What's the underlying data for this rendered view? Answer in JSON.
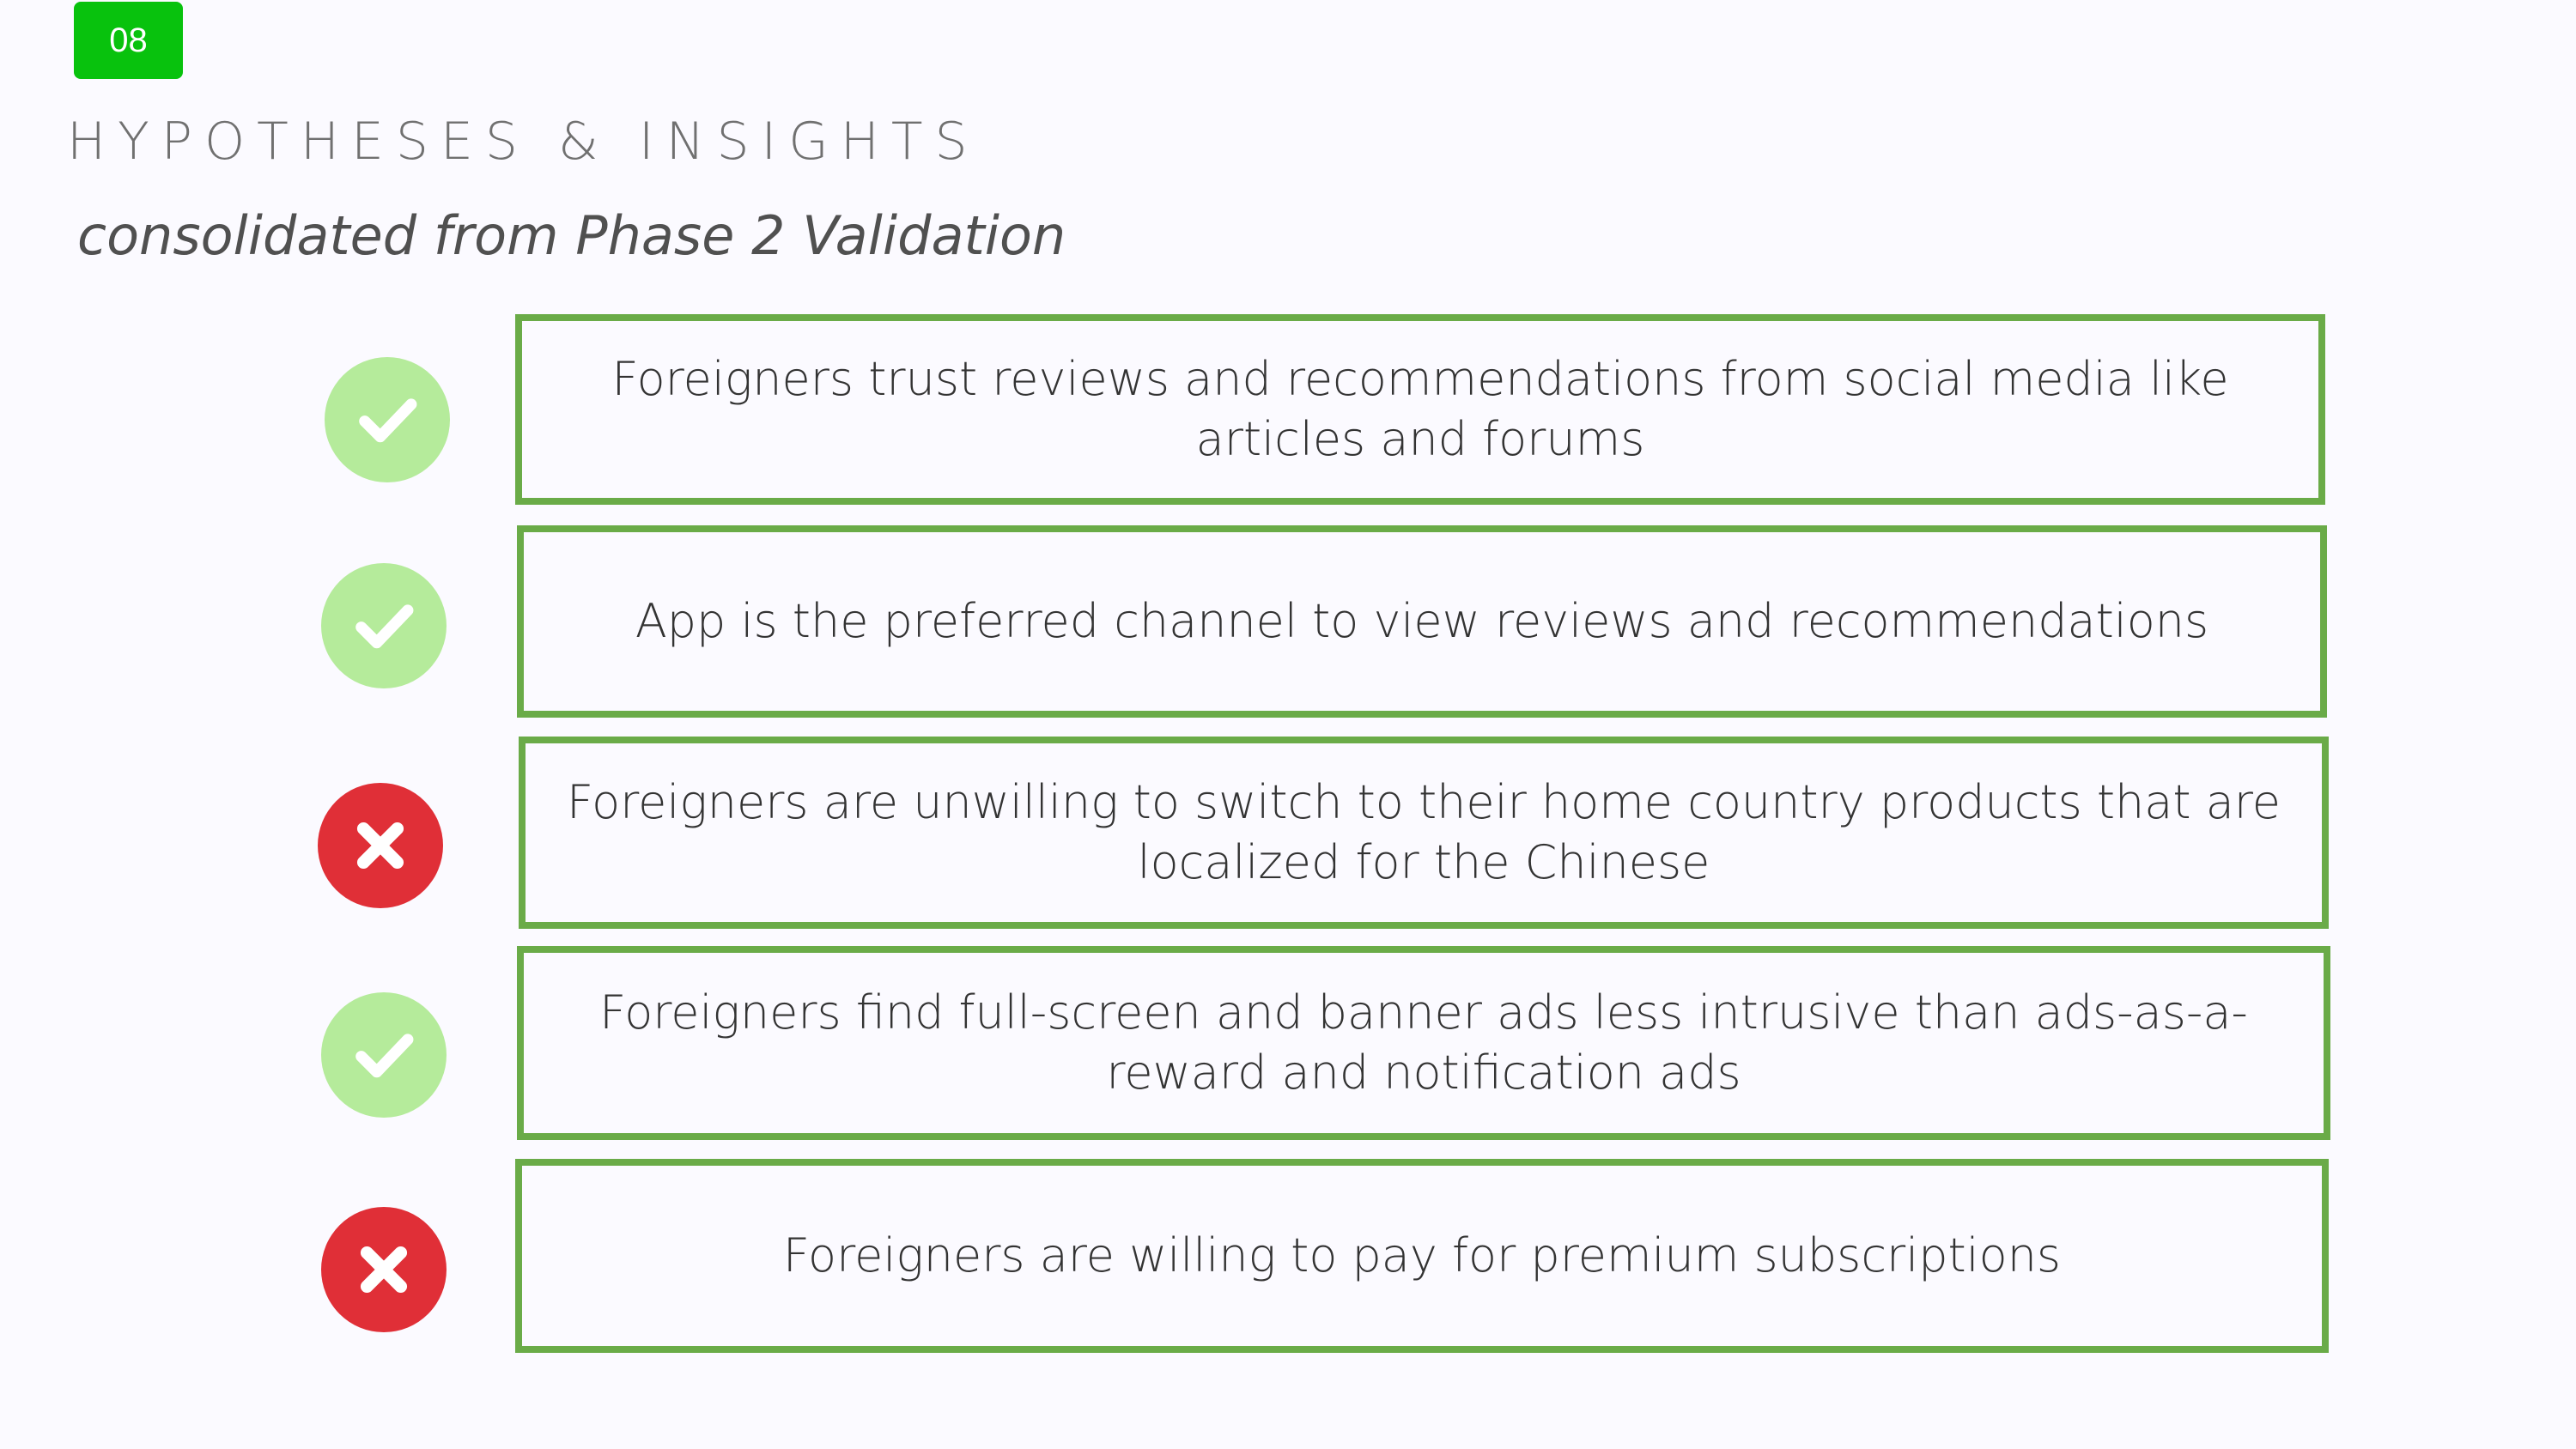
{
  "slide": {
    "number": "08",
    "title": "HYPOTHESES & INSIGHTS",
    "subtitle": "consolidated from Phase 2 Validation"
  },
  "hypotheses": [
    {
      "status": "validated",
      "icon": "check-circle-icon",
      "text": "Foreigners trust reviews and recommendations from social media like articles and forums"
    },
    {
      "status": "validated",
      "icon": "check-circle-icon",
      "text": "App is the preferred channel to view reviews and recommendations"
    },
    {
      "status": "invalidated",
      "icon": "x-circle-icon",
      "text": "Foreigners are unwilling to switch to their home country products that are localized for the Chinese"
    },
    {
      "status": "validated",
      "icon": "check-circle-icon",
      "text": "Foreigners find full-screen and banner ads less intrusive than ads-as-a-reward and notification ads"
    },
    {
      "status": "invalidated",
      "icon": "x-circle-icon",
      "text": "Foreigners are willing to pay for premium subscriptions"
    }
  ],
  "colors": {
    "badge": "#08c20d",
    "box_border": "#6aab48",
    "validated": "#b5eb9b",
    "invalidated": "#e02f37"
  }
}
